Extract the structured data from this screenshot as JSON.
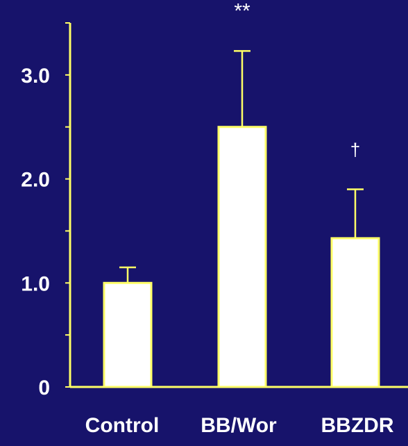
{
  "colors": {
    "background": "#17136b",
    "axis": "#ffff66",
    "bar_fill": "#ffffff",
    "bar_stroke": "#ffff66",
    "tick_label": "#ffffff",
    "annotation": "#ffffff"
  },
  "chart_data": {
    "type": "bar",
    "title": "",
    "xlabel": "",
    "ylabel": "",
    "ylim": [
      0,
      3.5
    ],
    "yticks": [
      {
        "value": 0,
        "label": "0"
      },
      {
        "value": 1.0,
        "label": "1.0"
      },
      {
        "value": 2.0,
        "label": "2.0"
      },
      {
        "value": 3.0,
        "label": "3.0"
      }
    ],
    "minor_yticks": [
      0.5,
      1.5,
      2.5,
      3.5
    ],
    "categories": [
      "Control",
      "BB/Wor",
      "BBZDR"
    ],
    "values": [
      1.0,
      2.5,
      1.43
    ],
    "error_upper": [
      1.15,
      3.23,
      1.9
    ],
    "annotations": [
      "",
      "**",
      "†"
    ],
    "grid": false,
    "legend": "none"
  }
}
